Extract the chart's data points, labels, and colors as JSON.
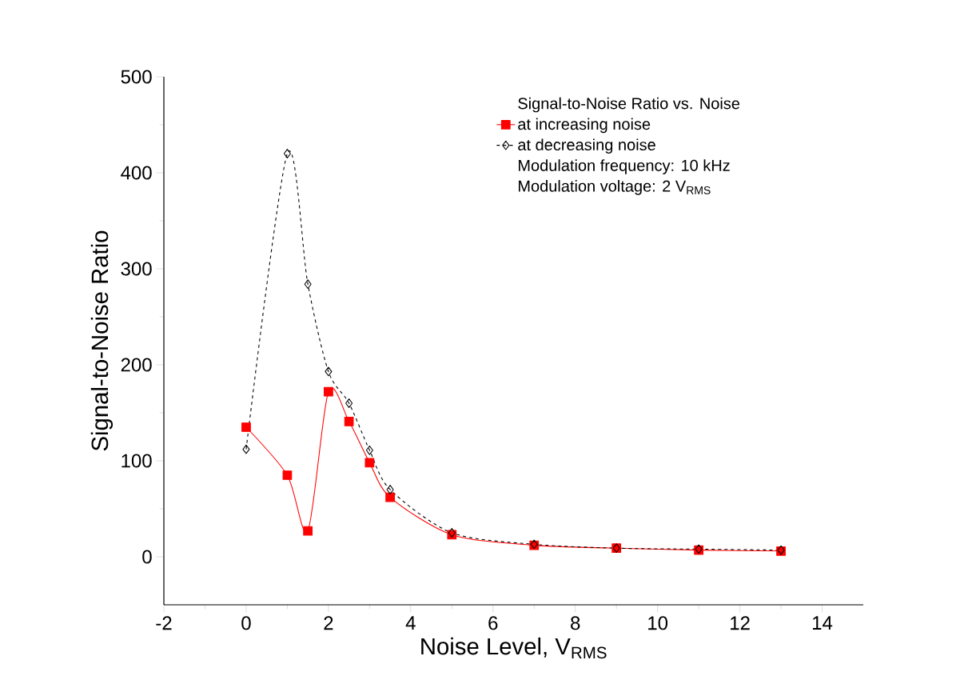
{
  "chart_data": {
    "type": "line",
    "xlabel": "Noise Level, V$_{RMS}$",
    "ylabel": "Signal-to-Noise Ratio",
    "legend_title": "Signal-to-Noise Ratio vs. Noise",
    "annotations": [
      "Modulation frequency: 10 kHz",
      "Modulation voltage: 2 V$_{RMS}$"
    ],
    "x": [
      0,
      1,
      1.5,
      2,
      2.5,
      3,
      3.5,
      5,
      7,
      9,
      11,
      13
    ],
    "series": [
      {
        "name": "at increasing noise",
        "color": "#ff0000",
        "marker": "square",
        "line_style": "solid",
        "values": [
          135,
          85,
          27,
          172,
          141,
          98,
          62,
          23,
          12,
          9,
          7,
          6
        ]
      },
      {
        "name": "at decreasing noise",
        "color": "#000000",
        "marker": "diamond",
        "line_style": "dashed",
        "values": [
          112,
          420,
          284,
          193,
          160,
          111,
          70,
          25,
          13,
          9,
          8,
          7
        ]
      }
    ],
    "xlim": [
      -2,
      15
    ],
    "xticks": [
      -2,
      0,
      2,
      4,
      6,
      8,
      10,
      12,
      14
    ],
    "ylim": [
      -50,
      500
    ],
    "yticks": [
      0,
      100,
      200,
      300,
      400,
      500
    ],
    "grid": false,
    "legend": "top right"
  }
}
